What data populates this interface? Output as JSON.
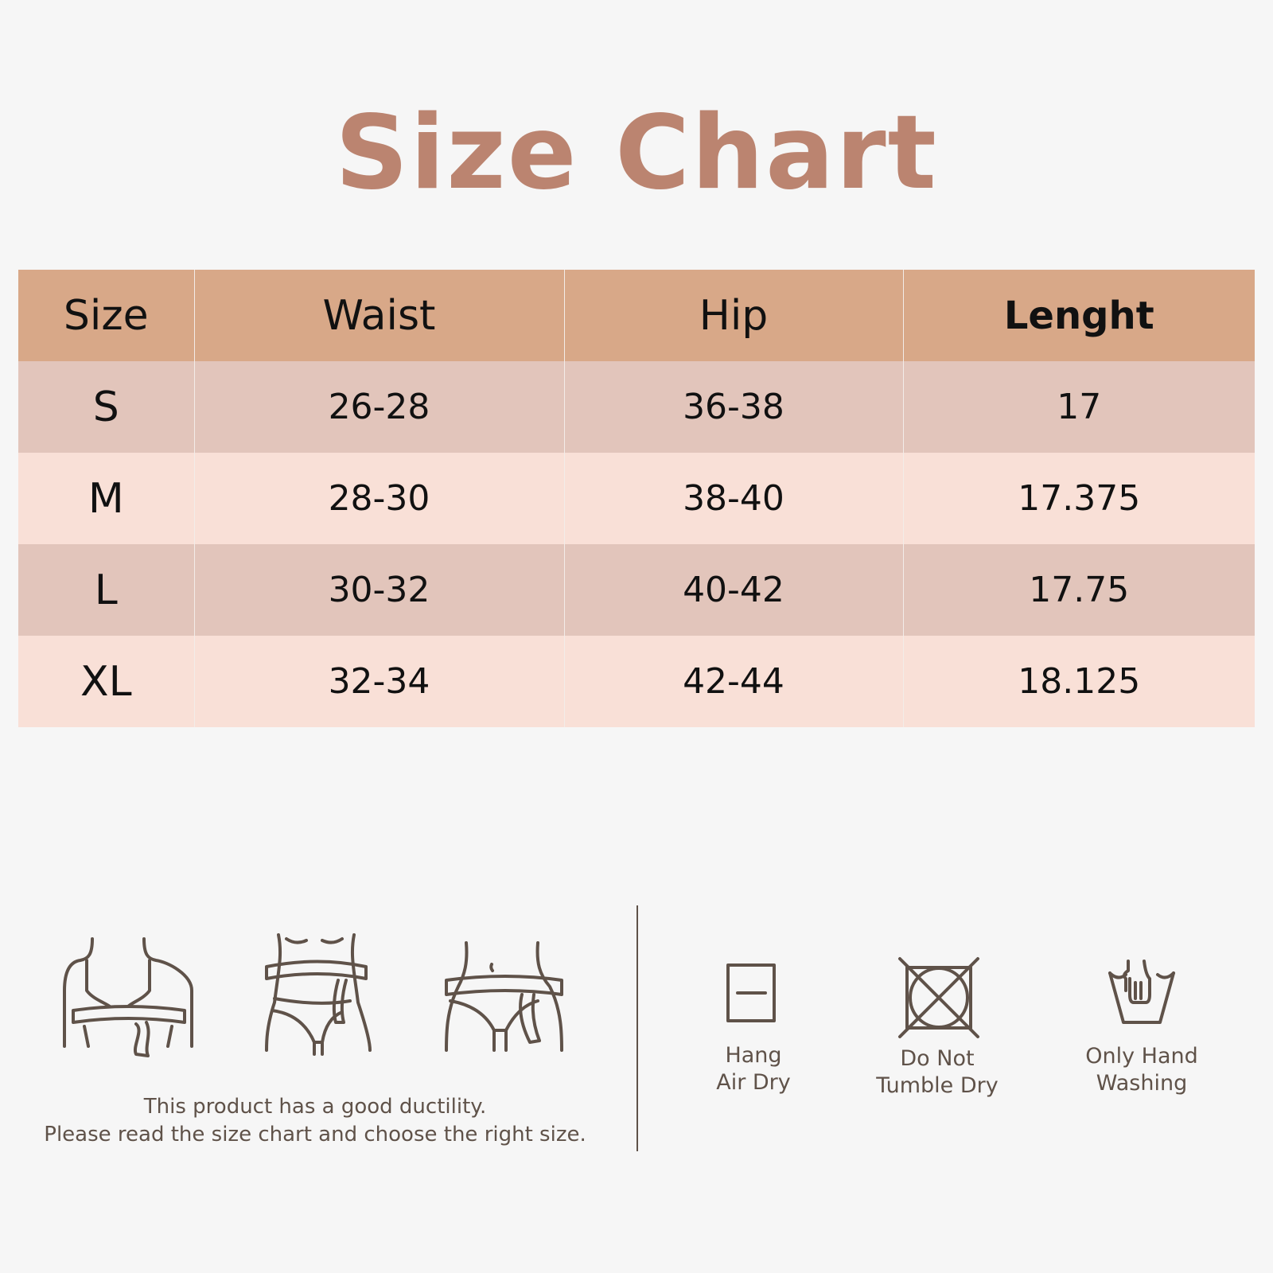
{
  "title": "Size Chart",
  "table": {
    "headers": [
      "Size",
      "Waist",
      "Hip",
      "Lenght"
    ],
    "rows": [
      [
        "S",
        "26-28",
        "36-38",
        "17"
      ],
      [
        "M",
        "28-30",
        "38-40",
        "17.375"
      ],
      [
        "L",
        "30-32",
        "40-42",
        "17.75"
      ],
      [
        "XL",
        "32-34",
        "42-44",
        "18.125"
      ]
    ]
  },
  "measure_icons": [
    "bust-measure-icon",
    "waist-measure-icon",
    "hip-measure-icon"
  ],
  "note": {
    "line1": "This product has a good ductility.",
    "line2": "Please read the size chart and choose the right size."
  },
  "care": [
    {
      "icon": "hang-dry-icon",
      "line1": "Hang",
      "line2": "Air Dry"
    },
    {
      "icon": "no-tumble-dry-icon",
      "line1": "Do Not",
      "line2": "Tumble Dry"
    },
    {
      "icon": "hand-wash-icon",
      "line1": "Only Hand",
      "line2": "Washing"
    }
  ],
  "colors": {
    "title": "#bb8470",
    "header": "#d8a888",
    "row_odd": "#e2c5bb",
    "row_even": "#f9e0d7",
    "icon": "#5f5249",
    "background": "#f6f6f6"
  }
}
